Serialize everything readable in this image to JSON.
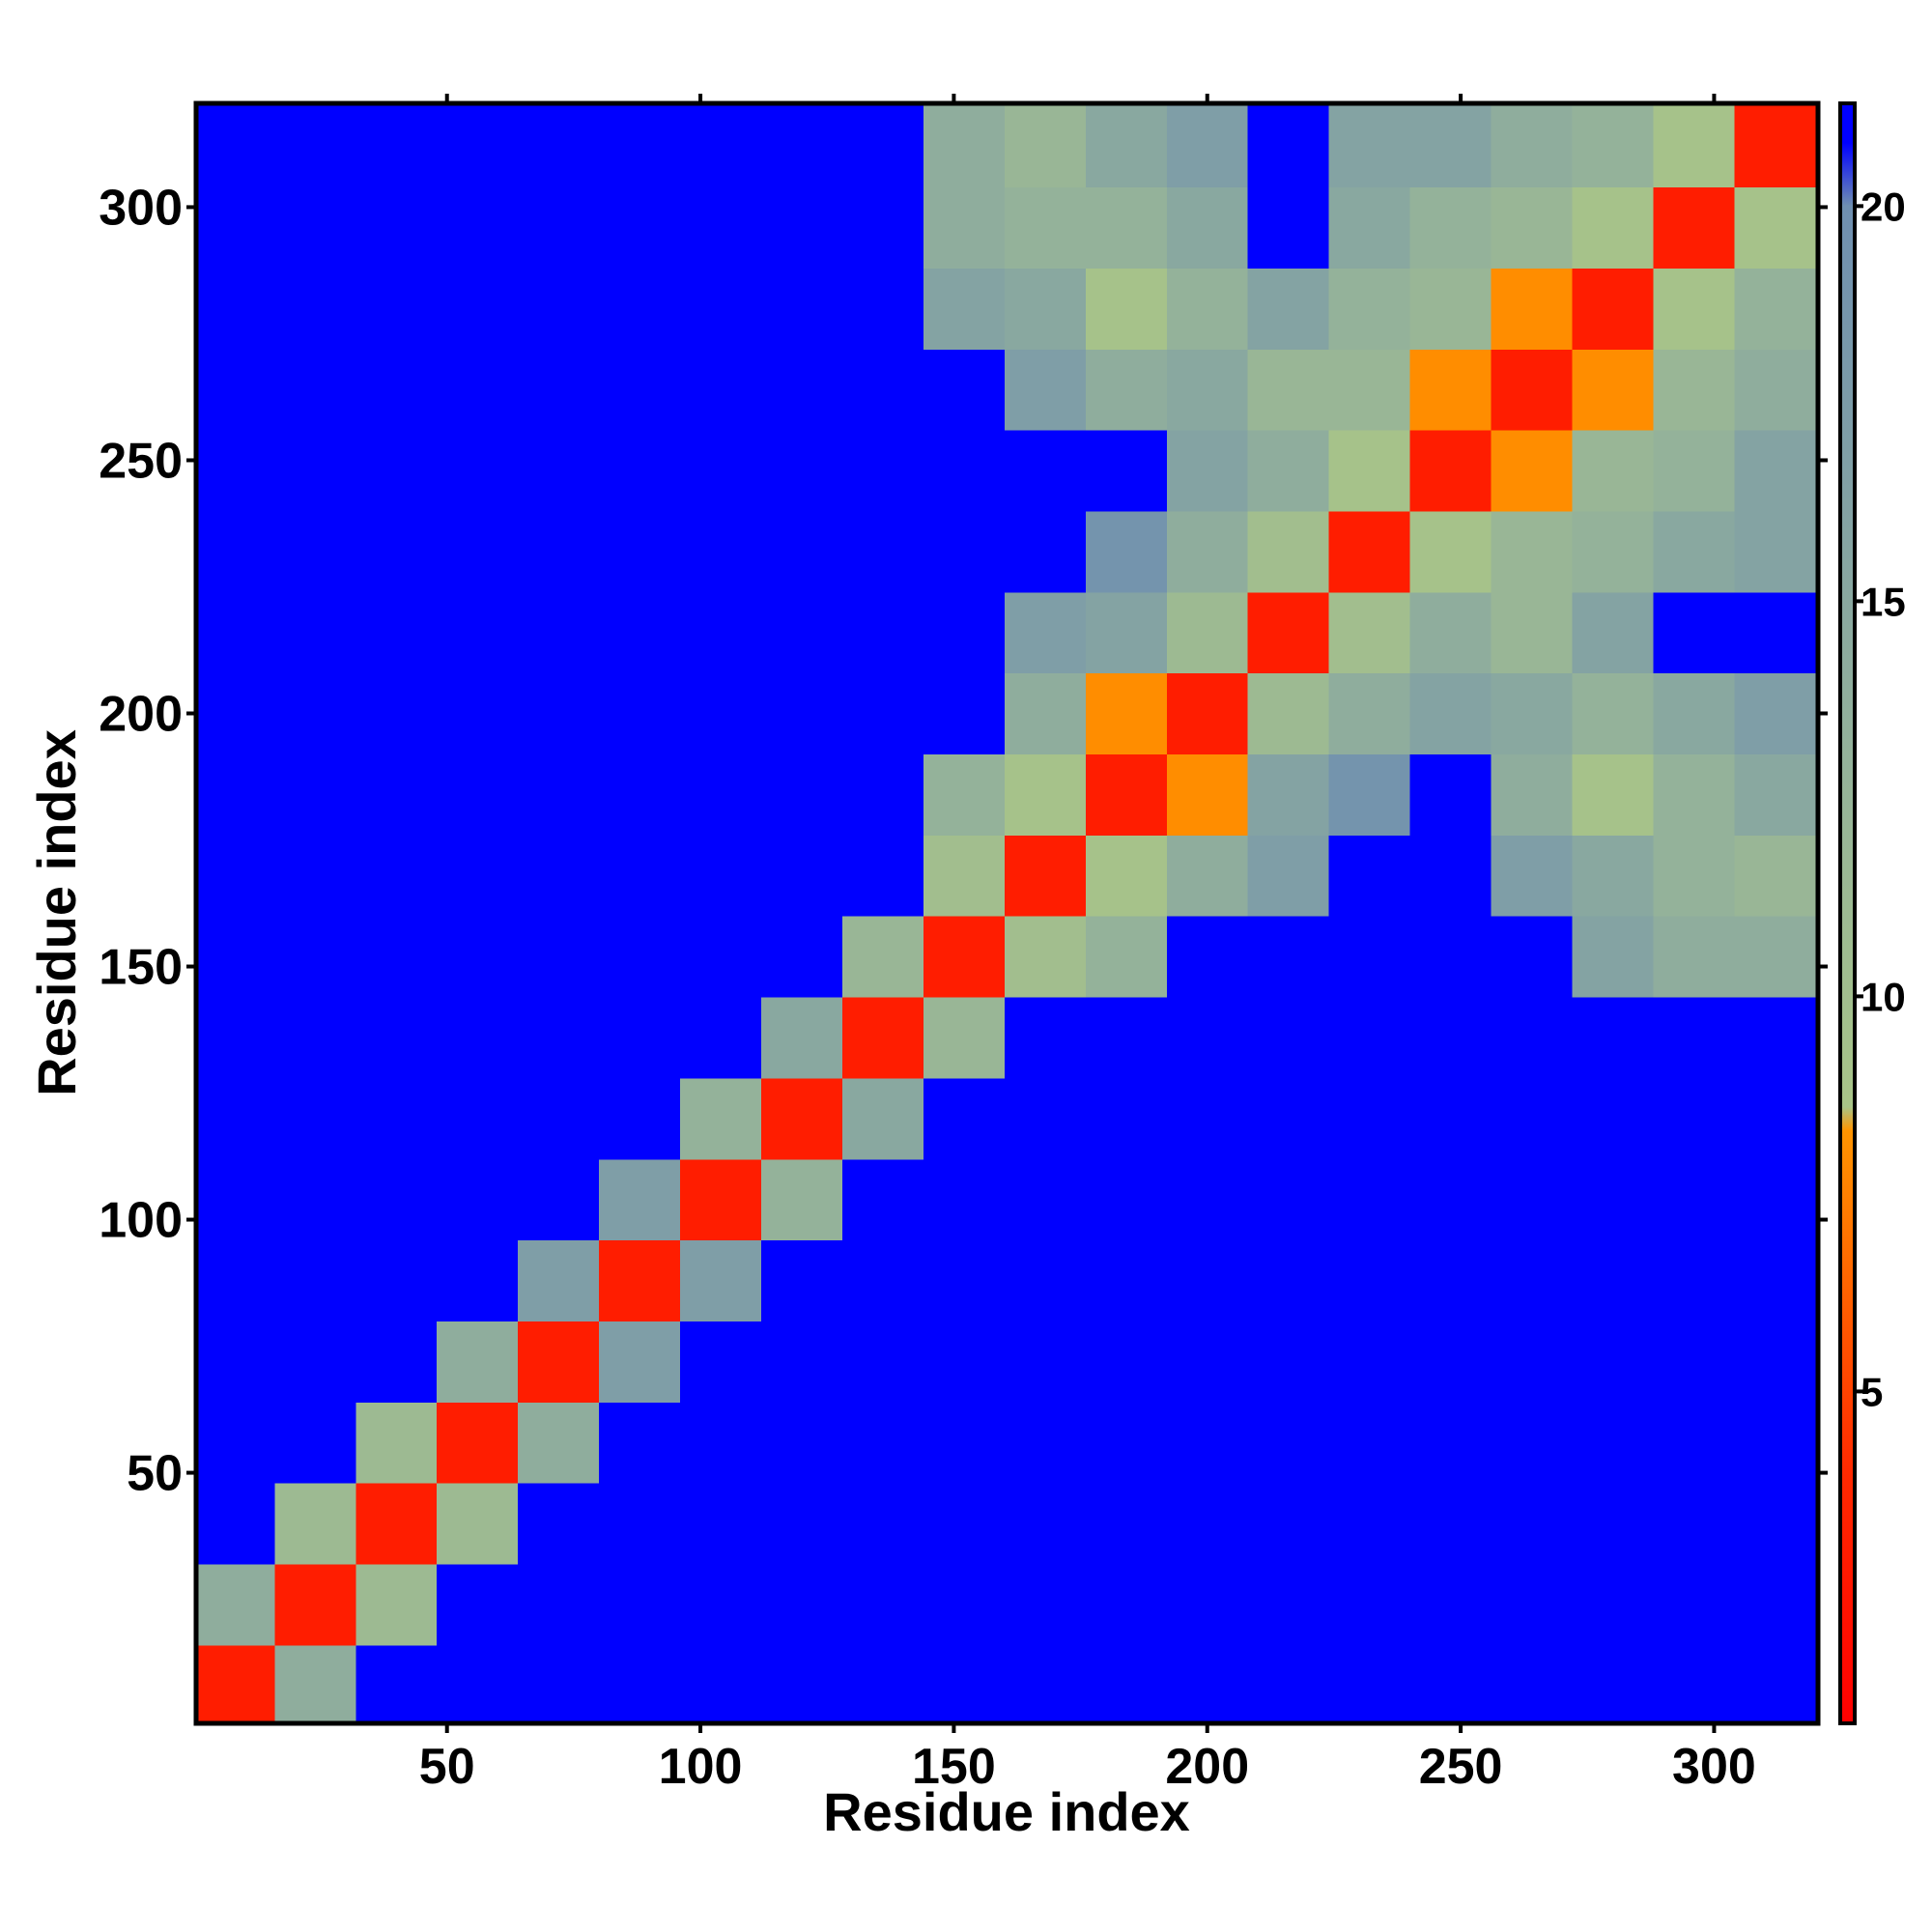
{
  "chart_data": {
    "type": "heatmap",
    "xlabel": "Residue index",
    "ylabel": "Residue index",
    "x": [
      8,
      24,
      40,
      56,
      72,
      88,
      104,
      120,
      136,
      152,
      168,
      184,
      200,
      216,
      232,
      248,
      264,
      280,
      296,
      312
    ],
    "y": [
      8,
      24,
      40,
      56,
      72,
      88,
      104,
      120,
      136,
      152,
      168,
      184,
      200,
      216,
      232,
      248,
      264,
      280,
      296,
      312
    ],
    "xlim": [
      0.5,
      320.5
    ],
    "ylim": [
      0.5,
      320.5
    ],
    "xticks": [
      50,
      100,
      150,
      200,
      250,
      300
    ],
    "yticks": [
      50,
      100,
      150,
      200,
      250,
      300
    ],
    "clim": [
      0.8,
      21.3
    ],
    "cticks": [
      5,
      10,
      15,
      20
    ],
    "colorscale": [
      {
        "value": 0.8,
        "color": "#ff0000"
      },
      {
        "value": 4,
        "color": "#ff2a00"
      },
      {
        "value": 8.3,
        "color": "#ff9400"
      },
      {
        "value": 8.6,
        "color": "#a8c488"
      },
      {
        "value": 13,
        "color": "#94b29a"
      },
      {
        "value": 20,
        "color": "#6f8fb0"
      },
      {
        "value": 20.8,
        "color": "#0000ff"
      },
      {
        "value": 21.3,
        "color": "#0000ff"
      }
    ],
    "values": [
      [
        3,
        14,
        21,
        21,
        21,
        21,
        21,
        21,
        21,
        21,
        21,
        21,
        21,
        21,
        21,
        21,
        21,
        21,
        21,
        21
      ],
      [
        14,
        3,
        11,
        21,
        21,
        21,
        21,
        21,
        21,
        21,
        21,
        21,
        21,
        21,
        21,
        21,
        21,
        21,
        21,
        21
      ],
      [
        21,
        11,
        3,
        11,
        21,
        21,
        21,
        21,
        21,
        21,
        21,
        21,
        21,
        21,
        21,
        21,
        21,
        21,
        21,
        21
      ],
      [
        21,
        21,
        11,
        3,
        14,
        21,
        21,
        21,
        21,
        21,
        21,
        21,
        21,
        21,
        21,
        21,
        21,
        21,
        21,
        21
      ],
      [
        21,
        21,
        21,
        14,
        3,
        17,
        21,
        21,
        21,
        21,
        21,
        21,
        21,
        21,
        21,
        21,
        21,
        21,
        21,
        21
      ],
      [
        21,
        21,
        21,
        21,
        17,
        3,
        17,
        21,
        21,
        21,
        21,
        21,
        21,
        21,
        21,
        21,
        21,
        21,
        21,
        21
      ],
      [
        21,
        21,
        21,
        21,
        21,
        17,
        3,
        13,
        21,
        21,
        21,
        21,
        21,
        21,
        21,
        21,
        21,
        21,
        21,
        21
      ],
      [
        21,
        21,
        21,
        21,
        21,
        21,
        13,
        3,
        15,
        21,
        21,
        21,
        21,
        21,
        21,
        21,
        21,
        21,
        21,
        21
      ],
      [
        21,
        21,
        21,
        21,
        21,
        21,
        21,
        15,
        3,
        12,
        21,
        21,
        21,
        21,
        21,
        21,
        21,
        21,
        21,
        21
      ],
      [
        21,
        21,
        21,
        21,
        21,
        21,
        21,
        21,
        12,
        3,
        10,
        13,
        21,
        21,
        21,
        21,
        21,
        16,
        14,
        14
      ],
      [
        21,
        21,
        21,
        21,
        21,
        21,
        21,
        21,
        21,
        10,
        3,
        9,
        14,
        17,
        21,
        21,
        17,
        15,
        13,
        12
      ],
      [
        21,
        21,
        21,
        21,
        21,
        21,
        21,
        21,
        21,
        13,
        9,
        3,
        8,
        16,
        19,
        21,
        14,
        9,
        13,
        15
      ],
      [
        21,
        21,
        21,
        21,
        21,
        21,
        21,
        21,
        21,
        21,
        14,
        8,
        3,
        11,
        14,
        16,
        15,
        13,
        15,
        17
      ],
      [
        21,
        21,
        21,
        21,
        21,
        21,
        21,
        21,
        21,
        21,
        17,
        16,
        11,
        3,
        10,
        14,
        12,
        16,
        21,
        21
      ],
      [
        21,
        21,
        21,
        21,
        21,
        21,
        21,
        21,
        21,
        21,
        21,
        19,
        14,
        10,
        3,
        9,
        12,
        13,
        15,
        16
      ],
      [
        21,
        21,
        21,
        21,
        21,
        21,
        21,
        21,
        21,
        21,
        21,
        21,
        16,
        14,
        9,
        3,
        8,
        12,
        13,
        16
      ],
      [
        21,
        21,
        21,
        21,
        21,
        21,
        21,
        21,
        21,
        21,
        17,
        14,
        15,
        12,
        12,
        8,
        3,
        8,
        12,
        14
      ],
      [
        21,
        21,
        21,
        21,
        21,
        21,
        21,
        21,
        21,
        16,
        15,
        9,
        13,
        16,
        13,
        12,
        8,
        3,
        9,
        13
      ],
      [
        21,
        21,
        21,
        21,
        21,
        21,
        21,
        21,
        21,
        14,
        13,
        13,
        15,
        21,
        15,
        13,
        12,
        9,
        3,
        9
      ],
      [
        21,
        21,
        21,
        21,
        21,
        21,
        21,
        21,
        21,
        14,
        12,
        15,
        17,
        21,
        16,
        16,
        14,
        13,
        9,
        3
      ]
    ]
  }
}
